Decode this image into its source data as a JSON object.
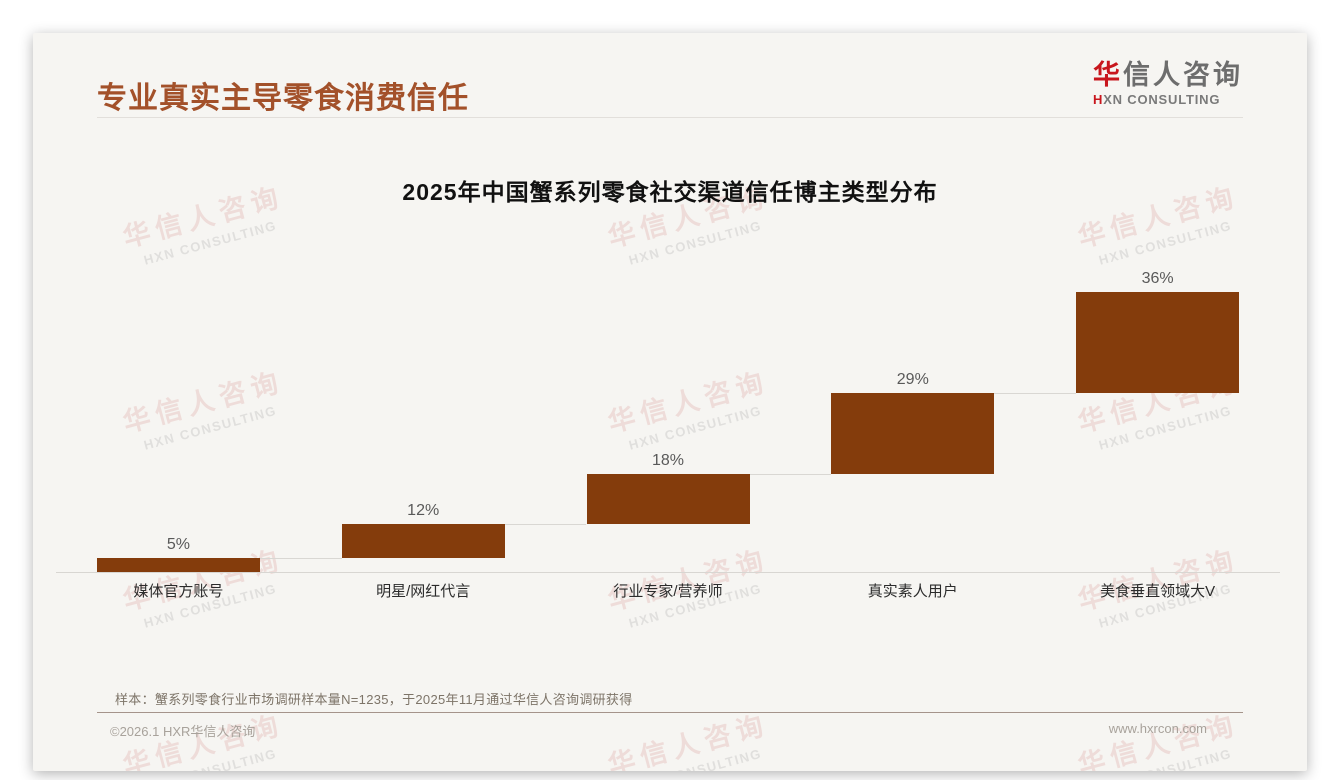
{
  "page": {
    "title": "专业真实主导零食消费信任"
  },
  "logo": {
    "cn_accent": "华",
    "cn_rest": "信人咨询",
    "en_accent": "H",
    "en_rest": "XN CONSULTING"
  },
  "watermark": {
    "line1": "华信人咨询",
    "line2": "HXN CONSULTING"
  },
  "chart_data": {
    "type": "bar",
    "subtype": "stacked-waterfall",
    "title": "2025年中国蟹系列零食社交渠道信任博主类型分布",
    "categories": [
      "媒体官方账号",
      "明星/网红代言",
      "行业专家/营养师",
      "真实素人用户",
      "美食垂直领域大V"
    ],
    "values": [
      5,
      12,
      18,
      29,
      36
    ],
    "labels": [
      "5%",
      "12%",
      "18%",
      "29%",
      "36%"
    ],
    "unit": "%",
    "ylim": [
      0,
      100
    ],
    "cumulative": true,
    "grid": false,
    "legend": "none",
    "bar_color": "#843c0c",
    "connector_color": "#d9d7d3",
    "value_label_color": "#595959"
  },
  "footnote": "样本：蟹系列零食行业市场调研样本量N=1235，于2025年11月通过华信人咨询调研获得",
  "footer": {
    "left": "©2026.1 HXR华信人咨询",
    "right": "www.hxrcon.com"
  }
}
